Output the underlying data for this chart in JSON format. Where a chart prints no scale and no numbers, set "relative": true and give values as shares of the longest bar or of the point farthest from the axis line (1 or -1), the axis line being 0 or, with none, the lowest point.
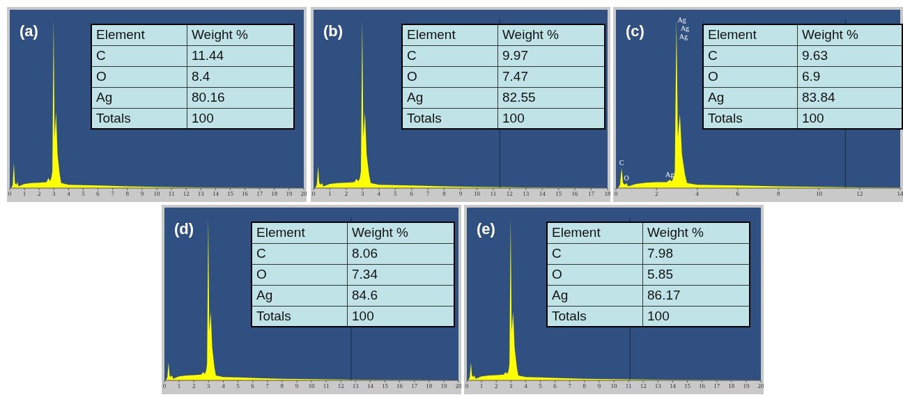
{
  "chart_data": [
    {
      "type": "area",
      "title": "(a)",
      "relative": true,
      "color": "#ffff00",
      "xlim": [
        0,
        20
      ],
      "xticks": [
        0,
        1,
        2,
        3,
        4,
        5,
        6,
        7,
        8,
        9,
        10,
        11,
        12,
        13,
        14,
        15,
        16,
        17,
        18,
        19,
        20
      ],
      "x": [
        0.1,
        0.2,
        0.28,
        0.35,
        0.45,
        0.52,
        0.6,
        1,
        1.5,
        2,
        2.5,
        2.63,
        2.75,
        2.84,
        2.9,
        2.98,
        3.05,
        3.15,
        3.25,
        3.4,
        3.5,
        4,
        5,
        6,
        8,
        10,
        12,
        14,
        16,
        18,
        20
      ],
      "values": [
        0,
        0.02,
        0.15,
        0.03,
        0.02,
        0.035,
        0.01,
        0.025,
        0.03,
        0.032,
        0.035,
        0.06,
        0.04,
        0.065,
        0.1,
        1,
        0.3,
        0.45,
        0.2,
        0.08,
        0.03,
        0.02,
        0.018,
        0.015,
        0.01,
        0.007,
        0.005,
        0.003,
        0.002,
        0.001,
        0
      ],
      "annotations": [
        "Element",
        "Weight %",
        "C",
        "11.44",
        "O",
        "8.4",
        "Ag",
        "80.16",
        "Totals",
        "100"
      ]
    },
    {
      "type": "area",
      "title": "(b)",
      "relative": true,
      "color": "#ffff00",
      "xlim": [
        0,
        18
      ],
      "xticks": [
        0,
        1,
        2,
        3,
        4,
        5,
        6,
        7,
        8,
        9,
        10,
        11,
        12,
        13,
        14,
        15,
        16,
        17,
        18
      ],
      "x": [
        0.1,
        0.2,
        0.28,
        0.35,
        0.45,
        0.52,
        0.6,
        1,
        1.5,
        2,
        2.5,
        2.63,
        2.75,
        2.84,
        2.9,
        2.98,
        3.05,
        3.15,
        3.25,
        3.4,
        3.5,
        4,
        5,
        6,
        8,
        10,
        12,
        14,
        16,
        18
      ],
      "values": [
        0,
        0.02,
        0.13,
        0.03,
        0.02,
        0.03,
        0.01,
        0.025,
        0.03,
        0.032,
        0.035,
        0.055,
        0.04,
        0.06,
        0.1,
        1,
        0.3,
        0.45,
        0.2,
        0.08,
        0.03,
        0.02,
        0.018,
        0.015,
        0.01,
        0.007,
        0.005,
        0.003,
        0.002,
        0
      ],
      "ref_lines": [
        {
          "axis": "x",
          "value": 11.4,
          "color": "#1a2a40"
        }
      ],
      "annotations": [
        "Element",
        "Weight %",
        "C",
        "9.97",
        "O",
        "7.47",
        "Ag",
        "82.55",
        "Totals",
        "100"
      ]
    },
    {
      "type": "area",
      "title": "(c)",
      "relative": true,
      "color": "#ffff00",
      "xlim": [
        0,
        14
      ],
      "xticks": [
        0,
        2,
        4,
        6,
        8,
        10,
        12,
        14
      ],
      "x": [
        0.1,
        0.2,
        0.28,
        0.35,
        0.45,
        0.52,
        0.6,
        1,
        1.5,
        2,
        2.5,
        2.65,
        2.75,
        2.84,
        2.9,
        2.98,
        3.05,
        3.15,
        3.25,
        3.4,
        3.5,
        4,
        5,
        6,
        8,
        10,
        12,
        14
      ],
      "values": [
        0,
        0.02,
        0.12,
        0.03,
        0.02,
        0.03,
        0.01,
        0.025,
        0.032,
        0.035,
        0.035,
        0.05,
        0.04,
        0.06,
        0.1,
        1,
        0.3,
        0.44,
        0.2,
        0.08,
        0.03,
        0.02,
        0.018,
        0.015,
        0.01,
        0.007,
        0.004,
        0.002
      ],
      "ref_lines": [
        {
          "axis": "x",
          "value": 11.3,
          "color": "#1a2a40"
        }
      ],
      "annotations": [
        "Element",
        "Weight %",
        "C",
        "9.63",
        "O",
        "6.9",
        "Ag",
        "83.84",
        "Totals",
        "100",
        {
          "text": "C",
          "x": 0.28,
          "y": 0.12
        },
        {
          "text": "O",
          "x": 0.52,
          "y": 0.03
        },
        {
          "text": "Ag",
          "x": 2.65,
          "y": 0.05
        },
        {
          "text": "Ag",
          "x": 2.9,
          "y": 1
        },
        {
          "text": "Ag",
          "x": 3.05,
          "y": 0.95
        },
        {
          "text": "Ag",
          "x": 2.98,
          "y": 0.9
        }
      ]
    },
    {
      "type": "area",
      "title": "(d)",
      "relative": true,
      "color": "#ffff00",
      "xlim": [
        0,
        20
      ],
      "xticks": [
        0,
        1,
        2,
        3,
        4,
        5,
        6,
        7,
        8,
        9,
        10,
        11,
        12,
        13,
        14,
        15,
        16,
        17,
        18,
        19,
        20
      ],
      "x": [
        0.1,
        0.2,
        0.28,
        0.35,
        0.45,
        0.52,
        0.6,
        1,
        1.5,
        2,
        2.5,
        2.63,
        2.75,
        2.84,
        2.9,
        2.98,
        3.05,
        3.15,
        3.25,
        3.4,
        3.5,
        4,
        5,
        6,
        8,
        10,
        12,
        14,
        16,
        18,
        20
      ],
      "values": [
        0,
        0.02,
        0.11,
        0.03,
        0.02,
        0.03,
        0.01,
        0.025,
        0.03,
        0.032,
        0.035,
        0.05,
        0.04,
        0.06,
        0.1,
        1,
        0.3,
        0.42,
        0.2,
        0.08,
        0.03,
        0.02,
        0.018,
        0.015,
        0.01,
        0.007,
        0.005,
        0.003,
        0.002,
        0.001,
        0
      ],
      "ref_lines": [
        {
          "axis": "x",
          "value": 12.7,
          "color": "#1a2a40"
        }
      ],
      "annotations": [
        "Element",
        "Weight %",
        "C",
        "8.06",
        "O",
        "7.34",
        "Ag",
        "84.6",
        "Totals",
        "100"
      ]
    },
    {
      "type": "area",
      "title": "(e)",
      "relative": true,
      "color": "#ffff00",
      "xlim": [
        0,
        20
      ],
      "xticks": [
        0,
        1,
        2,
        3,
        4,
        5,
        6,
        7,
        8,
        9,
        10,
        11,
        12,
        13,
        14,
        15,
        16,
        17,
        18,
        19,
        20
      ],
      "x": [
        0.1,
        0.2,
        0.28,
        0.35,
        0.45,
        0.52,
        0.6,
        1,
        1.5,
        2,
        2.5,
        2.63,
        2.75,
        2.84,
        2.9,
        2.98,
        3.05,
        3.15,
        3.25,
        3.4,
        3.5,
        4,
        5,
        6,
        8,
        10,
        12,
        14,
        16,
        18,
        20
      ],
      "values": [
        0,
        0.02,
        0.11,
        0.03,
        0.02,
        0.03,
        0.01,
        0.025,
        0.03,
        0.032,
        0.035,
        0.05,
        0.04,
        0.06,
        0.1,
        1,
        0.3,
        0.42,
        0.2,
        0.08,
        0.03,
        0.02,
        0.018,
        0.015,
        0.01,
        0.007,
        0.005,
        0.003,
        0.002,
        0.001,
        0
      ],
      "ref_lines": [
        {
          "axis": "x",
          "value": 11.1,
          "color": "#1a2a40"
        }
      ],
      "annotations": [
        "Element",
        "Weight %",
        "C",
        "7.98",
        "O",
        "5.85",
        "Ag",
        "86.17",
        "Totals",
        "100"
      ]
    }
  ]
}
